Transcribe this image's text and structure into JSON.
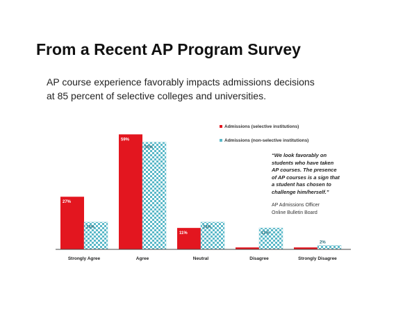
{
  "slide": {
    "title": "From a Recent AP Program Survey",
    "subtitle_lines": [
      "AP course experience favorably impacts admissions decisions",
      "at 85 percent of selective colleges and universities."
    ],
    "quote_lines": [
      "“We look favorably on",
      "students who have taken",
      "AP courses. The presence",
      "of AP courses is a sign that",
      "a student has chosen to",
      "challenge him/herself.”"
    ],
    "attribution_lines": [
      "AP Admissions Officer",
      "Online Bulletin Board"
    ]
  },
  "chart_data": {
    "type": "bar",
    "categories": [
      "Strongly Agree",
      "Agree",
      "Neutral",
      "Disagree",
      "Strongly Disagree"
    ],
    "series": [
      {
        "name": "Admissions (selective institutions)",
        "values": [
          27,
          59,
          11,
          1,
          1
        ],
        "labels": [
          "27%",
          "59%",
          "11%",
          "",
          ""
        ],
        "color": "#e3161f",
        "pattern": "solid"
      },
      {
        "name": "Admissions (non-selective institutions)",
        "values": [
          14,
          55,
          14,
          11,
          2
        ],
        "labels": [
          "14%",
          "55%",
          "14%",
          "11%",
          "2%"
        ],
        "color": "#5ab8c8",
        "pattern": "checker"
      }
    ],
    "ylim": [
      0,
      62
    ],
    "grid": false,
    "legend_position": "top-right"
  }
}
